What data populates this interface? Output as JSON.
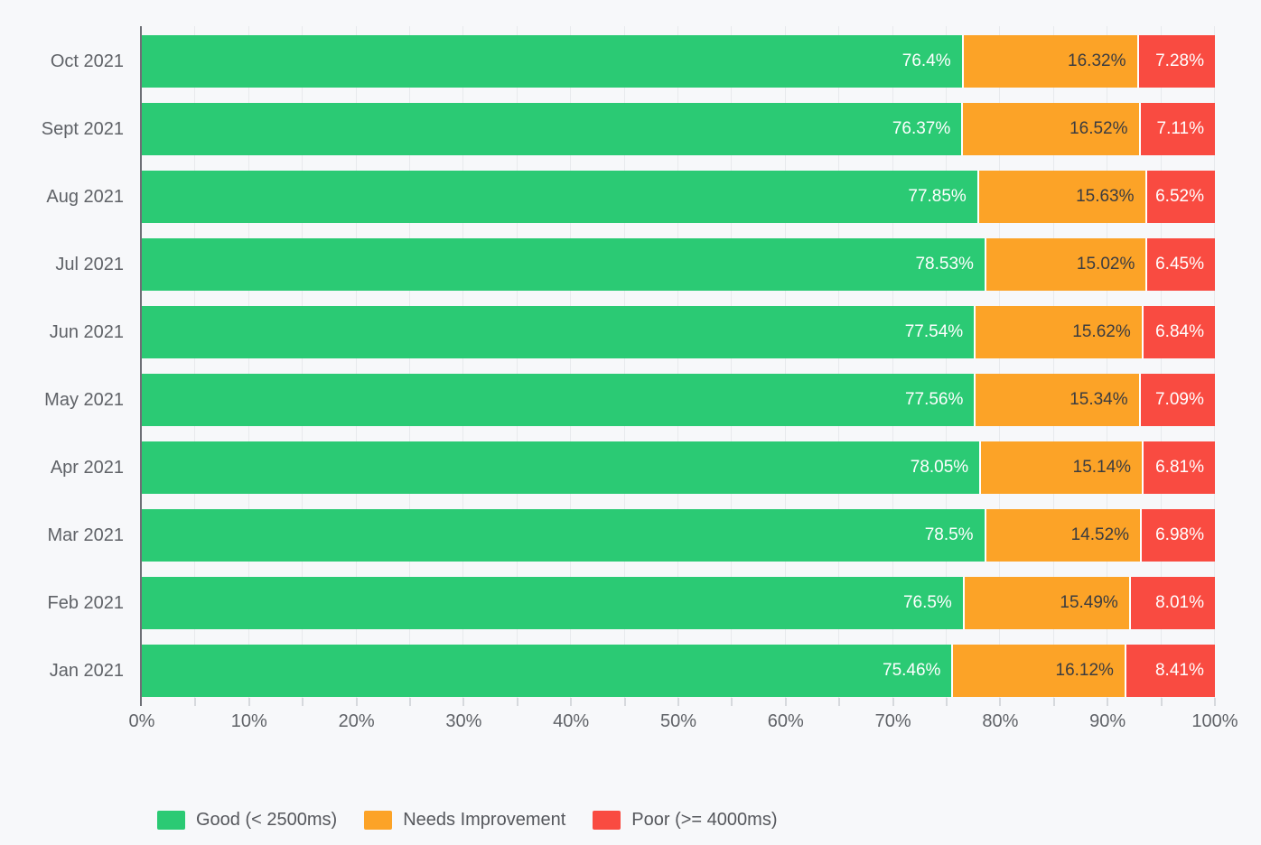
{
  "page": {
    "background_color": "#F7F8FA",
    "gridline_color": "#E8EAED",
    "axis_line_color": "#6E7076",
    "tick_color": "#D6D9DD",
    "axis_text_color": "#5F6267",
    "legend_text_color": "#55575C"
  },
  "chart_data": {
    "type": "bar",
    "orientation": "horizontal",
    "stacked": true,
    "title": "",
    "xlabel": "",
    "ylabel": "",
    "grid": true,
    "legend_position": "bottom-left",
    "xlim": [
      0,
      100
    ],
    "x_tick_labels": [
      "0%",
      "10%",
      "20%",
      "30%",
      "40%",
      "50%",
      "60%",
      "70%",
      "80%",
      "90%",
      "100%"
    ],
    "x_minor_tick_step_percent": 5,
    "data_label_suffix": "%",
    "categories": [
      "Oct 2021",
      "Sept 2021",
      "Aug 2021",
      "Jul 2021",
      "Jun 2021",
      "May 2021",
      "Apr 2021",
      "Mar 2021",
      "Feb 2021",
      "Jan 2021"
    ],
    "series": [
      {
        "name": "Good (< 2500ms)",
        "color": "#2BCA74",
        "label_text_color": "#FFFFFF",
        "values": [
          76.4,
          76.37,
          77.85,
          78.53,
          77.54,
          77.56,
          78.05,
          78.5,
          76.5,
          75.46
        ]
      },
      {
        "name": "Needs Improvement",
        "color": "#FCA327",
        "label_text_color": "#3B3C40",
        "values": [
          16.32,
          16.52,
          15.63,
          15.02,
          15.62,
          15.34,
          15.14,
          14.52,
          15.49,
          16.12
        ]
      },
      {
        "name": "Poor (>= 4000ms)",
        "color": "#F94B41",
        "label_text_color": "#FFFFFF",
        "values": [
          7.28,
          7.11,
          6.52,
          6.45,
          6.84,
          7.09,
          6.81,
          6.98,
          8.01,
          8.41
        ]
      }
    ]
  }
}
